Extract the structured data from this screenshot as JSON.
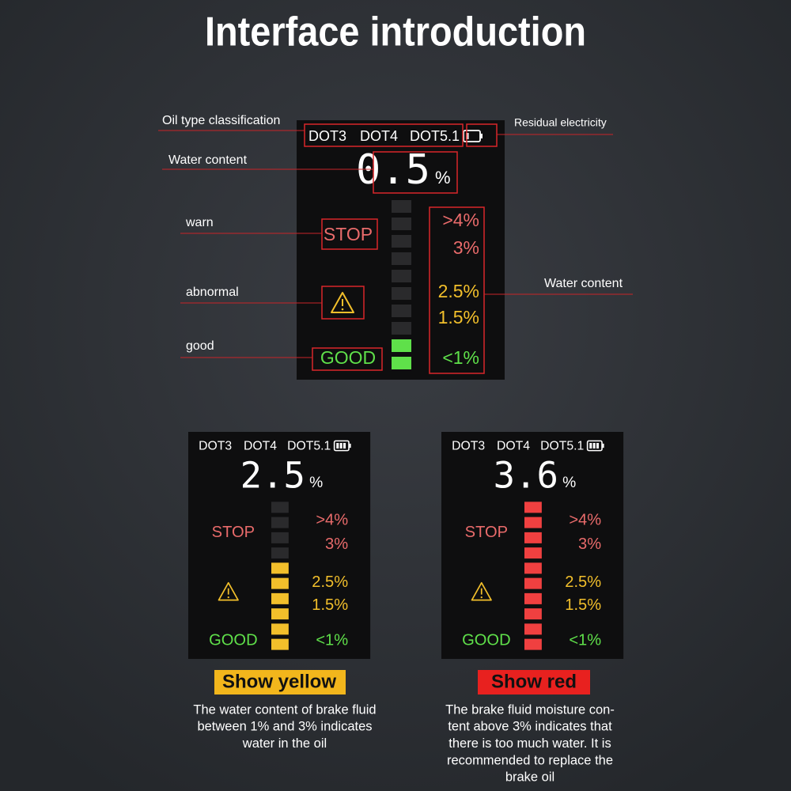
{
  "title": "Interface introduction",
  "main_screen": {
    "oil_types": [
      "DOT3",
      "DOT4",
      "DOT5.1"
    ],
    "reading": "0.5",
    "unit": "%",
    "stop": "STOP",
    "good": "GOOD",
    "scale": [
      ">4%",
      "3%",
      "2.5%",
      "1.5%",
      "<1%"
    ]
  },
  "annotations": {
    "oil_type": "Oil type classification",
    "battery": "Residual electricity",
    "water_content_left": "Water content",
    "warn": "warn",
    "abnormal": "abnormal",
    "good": "good",
    "water_content_right": "Water content"
  },
  "examples": [
    {
      "screen": {
        "oil_types": [
          "DOT3",
          "DOT4",
          "DOT5.1"
        ],
        "reading": "2.5",
        "unit": "%",
        "stop": "STOP",
        "good": "GOOD",
        "scale": [
          ">4%",
          "3%",
          "2.5%",
          "1.5%",
          "<1%"
        ]
      },
      "caption": "Show yellow",
      "description": [
        "The water content of brake fluid",
        "between 1% and 3% indicates",
        "water in the oil"
      ]
    },
    {
      "screen": {
        "oil_types": [
          "DOT3",
          "DOT4",
          "DOT5.1"
        ],
        "reading": "3.6",
        "unit": "%",
        "stop": "STOP",
        "good": "GOOD",
        "scale": [
          ">4%",
          "3%",
          "2.5%",
          "1.5%",
          "<1%"
        ]
      },
      "caption": "Show red",
      "description": [
        "The brake fluid moisture con-",
        "tent above 3% indicates that",
        "there is too much water. It is",
        "recommended to replace the",
        "brake oil"
      ]
    }
  ]
}
